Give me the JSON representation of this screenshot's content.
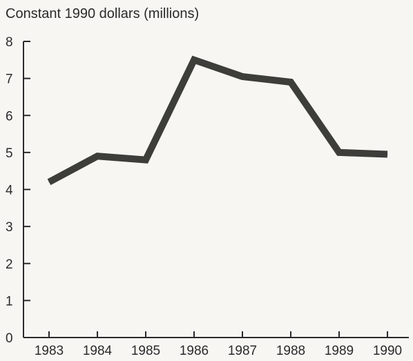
{
  "chart_data": {
    "type": "line",
    "title": "Constant 1990 dollars (millions)",
    "xlabel": "",
    "ylabel": "",
    "categories": [
      "1983",
      "1984",
      "1985",
      "1986",
      "1987",
      "1988",
      "1989",
      "1990"
    ],
    "series": [
      {
        "values": [
          4.2,
          4.9,
          4.8,
          7.5,
          7.05,
          6.9,
          5.0,
          4.95
        ]
      }
    ],
    "ylim": [
      0,
      8
    ],
    "yticks": [
      "0",
      "1",
      "2",
      "3",
      "4",
      "5",
      "6",
      "7",
      "8"
    ],
    "grid": false,
    "legend": "none",
    "line_color": "#3d3d3a",
    "axis_color": "#2a2a2a"
  }
}
